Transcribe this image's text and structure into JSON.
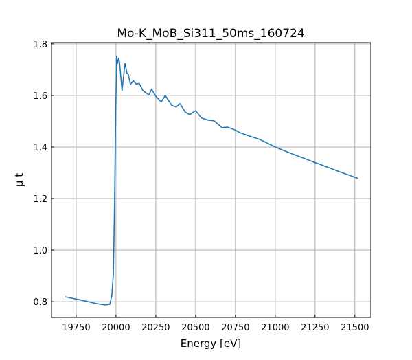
{
  "chart_data": {
    "type": "line",
    "title": "Mo-K_MoB_Si311_50ms_160724",
    "xlabel": "Energy [eV]",
    "ylabel": "μ t",
    "xlim": [
      19595,
      21600
    ],
    "ylim": [
      0.739,
      1.805
    ],
    "xticks": [
      19750,
      20000,
      20250,
      20500,
      20750,
      21000,
      21250,
      21500
    ],
    "yticks": [
      0.8,
      1.0,
      1.2,
      1.4,
      1.6,
      1.8
    ],
    "xtick_labels": [
      "19750",
      "20000",
      "20250",
      "20500",
      "20750",
      "21000",
      "21250",
      "21500"
    ],
    "ytick_labels": [
      "0.8",
      "1.0",
      "1.2",
      "1.4",
      "1.6",
      "1.8"
    ],
    "grid": true,
    "line_color": "#1f77b4",
    "series": [
      {
        "x": [
          19681,
          19789,
          19880,
          19931,
          19961,
          19974,
          19983,
          19991,
          19996,
          20004,
          20010,
          20016,
          20022,
          20038,
          20057,
          20069,
          20076,
          20091,
          20109,
          20129,
          20145,
          20169,
          20206,
          20224,
          20249,
          20284,
          20309,
          20349,
          20378,
          20402,
          20435,
          20464,
          20500,
          20536,
          20579,
          20615,
          20665,
          20701,
          20744,
          20780,
          20850,
          20900,
          20950,
          21000,
          21100,
          21250,
          21400,
          21520
        ],
        "y": [
          0.819,
          0.805,
          0.792,
          0.787,
          0.79,
          0.824,
          0.904,
          1.171,
          1.437,
          1.755,
          1.723,
          1.741,
          1.731,
          1.619,
          1.725,
          1.686,
          1.683,
          1.643,
          1.657,
          1.643,
          1.648,
          1.619,
          1.602,
          1.624,
          1.597,
          1.575,
          1.6,
          1.562,
          1.555,
          1.568,
          1.535,
          1.526,
          1.541,
          1.513,
          1.504,
          1.502,
          1.475,
          1.477,
          1.467,
          1.455,
          1.44,
          1.43,
          1.415,
          1.4,
          1.375,
          1.34,
          1.305,
          1.278
        ]
      }
    ]
  }
}
